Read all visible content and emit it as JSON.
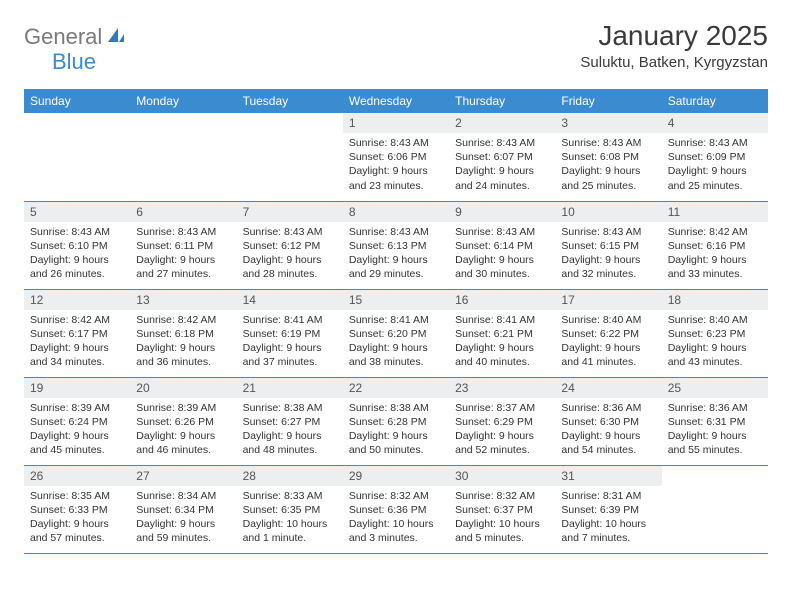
{
  "logo": {
    "word1": "General",
    "word2": "Blue"
  },
  "title": "January 2025",
  "location": "Suluktu, Batken, Kyrgyzstan",
  "colors": {
    "header_bg": "#3b8bd0",
    "header_fg": "#ffffff",
    "daynum_bg": "#eceeef",
    "row_border": "#3b8bd0",
    "body_text": "#333333",
    "logo_gray": "#7a7a7a",
    "logo_blue": "#3b8bd0"
  },
  "day_names": [
    "Sunday",
    "Monday",
    "Tuesday",
    "Wednesday",
    "Thursday",
    "Friday",
    "Saturday"
  ],
  "weeks": [
    [
      {
        "n": "",
        "l1": "",
        "l2": "",
        "l3": "",
        "l4": "",
        "empty": true
      },
      {
        "n": "",
        "l1": "",
        "l2": "",
        "l3": "",
        "l4": "",
        "empty": true
      },
      {
        "n": "",
        "l1": "",
        "l2": "",
        "l3": "",
        "l4": "",
        "empty": true
      },
      {
        "n": "1",
        "l1": "Sunrise: 8:43 AM",
        "l2": "Sunset: 6:06 PM",
        "l3": "Daylight: 9 hours",
        "l4": "and 23 minutes."
      },
      {
        "n": "2",
        "l1": "Sunrise: 8:43 AM",
        "l2": "Sunset: 6:07 PM",
        "l3": "Daylight: 9 hours",
        "l4": "and 24 minutes."
      },
      {
        "n": "3",
        "l1": "Sunrise: 8:43 AM",
        "l2": "Sunset: 6:08 PM",
        "l3": "Daylight: 9 hours",
        "l4": "and 25 minutes."
      },
      {
        "n": "4",
        "l1": "Sunrise: 8:43 AM",
        "l2": "Sunset: 6:09 PM",
        "l3": "Daylight: 9 hours",
        "l4": "and 25 minutes."
      }
    ],
    [
      {
        "n": "5",
        "l1": "Sunrise: 8:43 AM",
        "l2": "Sunset: 6:10 PM",
        "l3": "Daylight: 9 hours",
        "l4": "and 26 minutes."
      },
      {
        "n": "6",
        "l1": "Sunrise: 8:43 AM",
        "l2": "Sunset: 6:11 PM",
        "l3": "Daylight: 9 hours",
        "l4": "and 27 minutes."
      },
      {
        "n": "7",
        "l1": "Sunrise: 8:43 AM",
        "l2": "Sunset: 6:12 PM",
        "l3": "Daylight: 9 hours",
        "l4": "and 28 minutes."
      },
      {
        "n": "8",
        "l1": "Sunrise: 8:43 AM",
        "l2": "Sunset: 6:13 PM",
        "l3": "Daylight: 9 hours",
        "l4": "and 29 minutes."
      },
      {
        "n": "9",
        "l1": "Sunrise: 8:43 AM",
        "l2": "Sunset: 6:14 PM",
        "l3": "Daylight: 9 hours",
        "l4": "and 30 minutes."
      },
      {
        "n": "10",
        "l1": "Sunrise: 8:43 AM",
        "l2": "Sunset: 6:15 PM",
        "l3": "Daylight: 9 hours",
        "l4": "and 32 minutes."
      },
      {
        "n": "11",
        "l1": "Sunrise: 8:42 AM",
        "l2": "Sunset: 6:16 PM",
        "l3": "Daylight: 9 hours",
        "l4": "and 33 minutes."
      }
    ],
    [
      {
        "n": "12",
        "l1": "Sunrise: 8:42 AM",
        "l2": "Sunset: 6:17 PM",
        "l3": "Daylight: 9 hours",
        "l4": "and 34 minutes."
      },
      {
        "n": "13",
        "l1": "Sunrise: 8:42 AM",
        "l2": "Sunset: 6:18 PM",
        "l3": "Daylight: 9 hours",
        "l4": "and 36 minutes."
      },
      {
        "n": "14",
        "l1": "Sunrise: 8:41 AM",
        "l2": "Sunset: 6:19 PM",
        "l3": "Daylight: 9 hours",
        "l4": "and 37 minutes."
      },
      {
        "n": "15",
        "l1": "Sunrise: 8:41 AM",
        "l2": "Sunset: 6:20 PM",
        "l3": "Daylight: 9 hours",
        "l4": "and 38 minutes."
      },
      {
        "n": "16",
        "l1": "Sunrise: 8:41 AM",
        "l2": "Sunset: 6:21 PM",
        "l3": "Daylight: 9 hours",
        "l4": "and 40 minutes."
      },
      {
        "n": "17",
        "l1": "Sunrise: 8:40 AM",
        "l2": "Sunset: 6:22 PM",
        "l3": "Daylight: 9 hours",
        "l4": "and 41 minutes."
      },
      {
        "n": "18",
        "l1": "Sunrise: 8:40 AM",
        "l2": "Sunset: 6:23 PM",
        "l3": "Daylight: 9 hours",
        "l4": "and 43 minutes."
      }
    ],
    [
      {
        "n": "19",
        "l1": "Sunrise: 8:39 AM",
        "l2": "Sunset: 6:24 PM",
        "l3": "Daylight: 9 hours",
        "l4": "and 45 minutes."
      },
      {
        "n": "20",
        "l1": "Sunrise: 8:39 AM",
        "l2": "Sunset: 6:26 PM",
        "l3": "Daylight: 9 hours",
        "l4": "and 46 minutes."
      },
      {
        "n": "21",
        "l1": "Sunrise: 8:38 AM",
        "l2": "Sunset: 6:27 PM",
        "l3": "Daylight: 9 hours",
        "l4": "and 48 minutes."
      },
      {
        "n": "22",
        "l1": "Sunrise: 8:38 AM",
        "l2": "Sunset: 6:28 PM",
        "l3": "Daylight: 9 hours",
        "l4": "and 50 minutes."
      },
      {
        "n": "23",
        "l1": "Sunrise: 8:37 AM",
        "l2": "Sunset: 6:29 PM",
        "l3": "Daylight: 9 hours",
        "l4": "and 52 minutes."
      },
      {
        "n": "24",
        "l1": "Sunrise: 8:36 AM",
        "l2": "Sunset: 6:30 PM",
        "l3": "Daylight: 9 hours",
        "l4": "and 54 minutes."
      },
      {
        "n": "25",
        "l1": "Sunrise: 8:36 AM",
        "l2": "Sunset: 6:31 PM",
        "l3": "Daylight: 9 hours",
        "l4": "and 55 minutes."
      }
    ],
    [
      {
        "n": "26",
        "l1": "Sunrise: 8:35 AM",
        "l2": "Sunset: 6:33 PM",
        "l3": "Daylight: 9 hours",
        "l4": "and 57 minutes."
      },
      {
        "n": "27",
        "l1": "Sunrise: 8:34 AM",
        "l2": "Sunset: 6:34 PM",
        "l3": "Daylight: 9 hours",
        "l4": "and 59 minutes."
      },
      {
        "n": "28",
        "l1": "Sunrise: 8:33 AM",
        "l2": "Sunset: 6:35 PM",
        "l3": "Daylight: 10 hours",
        "l4": "and 1 minute."
      },
      {
        "n": "29",
        "l1": "Sunrise: 8:32 AM",
        "l2": "Sunset: 6:36 PM",
        "l3": "Daylight: 10 hours",
        "l4": "and 3 minutes."
      },
      {
        "n": "30",
        "l1": "Sunrise: 8:32 AM",
        "l2": "Sunset: 6:37 PM",
        "l3": "Daylight: 10 hours",
        "l4": "and 5 minutes."
      },
      {
        "n": "31",
        "l1": "Sunrise: 8:31 AM",
        "l2": "Sunset: 6:39 PM",
        "l3": "Daylight: 10 hours",
        "l4": "and 7 minutes."
      },
      {
        "n": "",
        "l1": "",
        "l2": "",
        "l3": "",
        "l4": "",
        "empty": true
      }
    ]
  ]
}
